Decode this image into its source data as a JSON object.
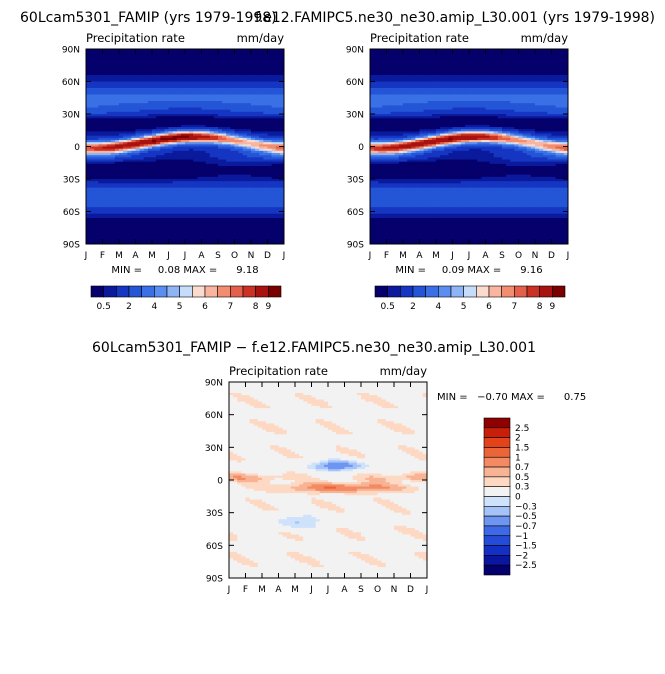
{
  "colors": {
    "seq": [
      "#05006b",
      "#0b1a9c",
      "#1535c2",
      "#2355d6",
      "#3a70e6",
      "#5a8ef0",
      "#8fb4f6",
      "#c6dcfb",
      "#f9dccd",
      "#f9b59f",
      "#f28d70",
      "#e4604a",
      "#cc3224",
      "#a8130f",
      "#7a0000"
    ],
    "div": [
      "#04006e",
      "#0a15a0",
      "#1430c4",
      "#244cd8",
      "#3d69e6",
      "#6e95f1",
      "#a5c3f8",
      "#cfe2fc",
      "#f2f2f2",
      "#fdd9c4",
      "#f8b394",
      "#f38a62",
      "#ec6538",
      "#e3421b",
      "#c91f0a",
      "#8f0000"
    ]
  },
  "chart_data": [
    {
      "type": "heatmap",
      "title": "60Lcam5301_FAMIP (yrs 1979-1998)",
      "subtitle_left": "Precipitation rate",
      "subtitle_right": "mm/day",
      "x_ticks": [
        "J",
        "F",
        "M",
        "A",
        "M",
        "J",
        "J",
        "A",
        "S",
        "O",
        "N",
        "D",
        "J"
      ],
      "y_ticks": [
        "90N",
        "60N",
        "30N",
        "0",
        "30S",
        "60S",
        "90S"
      ],
      "y_values": [
        90,
        60,
        30,
        0,
        -30,
        -60,
        -90
      ],
      "stats": "MIN =     0.08 MAX =      9.18",
      "colorbar_labels": [
        "0.5",
        "2",
        "4",
        "5",
        "6",
        "7",
        "8",
        "9"
      ]
    },
    {
      "type": "heatmap",
      "title": "f.e12.FAMIPC5.ne30_ne30.amip_L30.001 (yrs 1979-1998)",
      "subtitle_left": "Precipitation rate",
      "subtitle_right": "mm/day",
      "x_ticks": [
        "J",
        "F",
        "M",
        "A",
        "M",
        "J",
        "J",
        "A",
        "S",
        "O",
        "N",
        "D",
        "J"
      ],
      "y_ticks": [
        "90N",
        "60N",
        "30N",
        "0",
        "30S",
        "60S",
        "90S"
      ],
      "y_values": [
        90,
        60,
        30,
        0,
        -30,
        -60,
        -90
      ],
      "stats": "MIN =     0.09 MAX =      9.16",
      "colorbar_labels": [
        "0.5",
        "2",
        "4",
        "5",
        "6",
        "7",
        "8",
        "9"
      ]
    },
    {
      "type": "heatmap",
      "title": "60Lcam5301_FAMIP − f.e12.FAMIPC5.ne30_ne30.amip_L30.001",
      "subtitle_left": "Precipitation rate",
      "subtitle_right": "mm/day",
      "x_ticks": [
        "J",
        "F",
        "M",
        "A",
        "M",
        "J",
        "J",
        "A",
        "S",
        "O",
        "N",
        "D",
        "J"
      ],
      "y_ticks": [
        "90N",
        "60N",
        "30N",
        "0",
        "30S",
        "60S",
        "90S"
      ],
      "y_values": [
        90,
        60,
        30,
        0,
        -30,
        -60,
        -90
      ],
      "stats": "MIN =   −0.70 MAX =      0.75",
      "colorbar_labels": [
        "2.5",
        "2",
        "1.5",
        "1",
        "0.7",
        "0.5",
        "0.3",
        "0",
        "−0.3",
        "−0.5",
        "−0.7",
        "−1",
        "−1.5",
        "−2",
        "−2.5"
      ]
    }
  ]
}
